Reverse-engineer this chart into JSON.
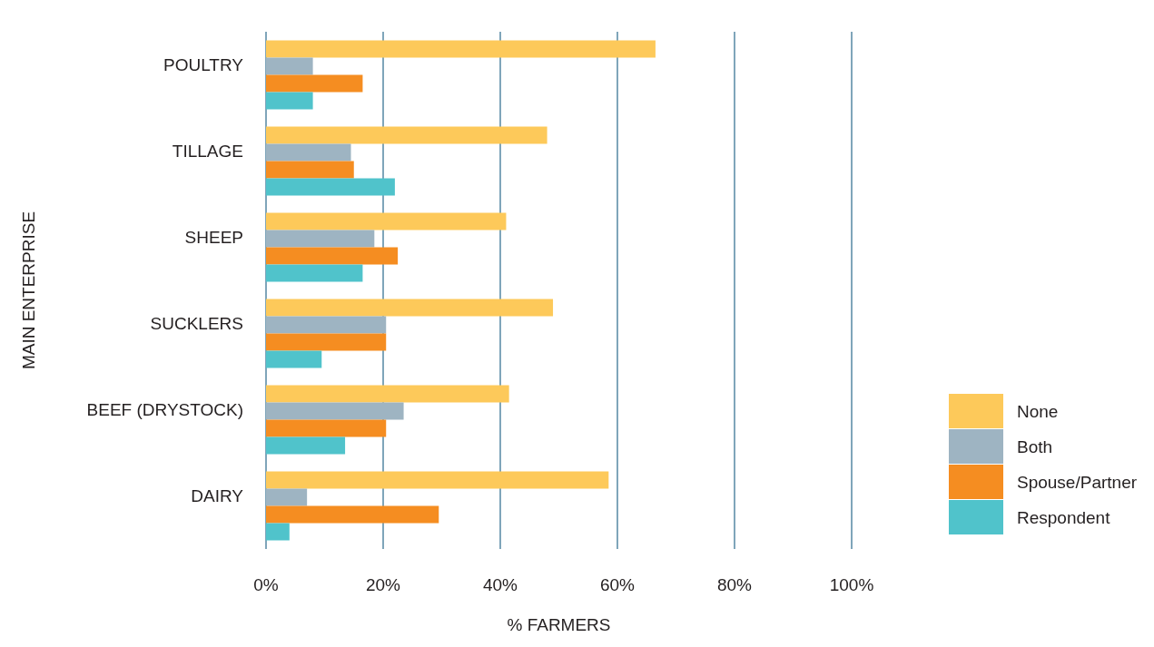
{
  "chart_data": {
    "type": "bar",
    "orientation": "horizontal",
    "xlabel": "% FARMERS",
    "ylabel": "MAIN ENTERPRISE",
    "categories": [
      "POULTRY",
      "TILLAGE",
      "SHEEP",
      "SUCKLERS",
      "BEEF (DRYSTOCK)",
      "DAIRY"
    ],
    "series": [
      {
        "name": "None",
        "color": "#fdc95a",
        "values": [
          66.5,
          48,
          41,
          49,
          41.5,
          58.5
        ]
      },
      {
        "name": "Both",
        "color": "#9eb4c2",
        "values": [
          8,
          14.5,
          18.5,
          20.5,
          23.5,
          7
        ]
      },
      {
        "name": "Spouse/Partner",
        "color": "#f58d21",
        "values": [
          16.5,
          15,
          22.5,
          20.5,
          20.5,
          29.5
        ]
      },
      {
        "name": "Respondent",
        "color": "#50c3cb",
        "values": [
          8,
          22,
          16.5,
          9.5,
          13.5,
          4
        ]
      }
    ],
    "xlim": [
      0,
      100
    ],
    "xticks": [
      {
        "value": 0,
        "label": "0%"
      },
      {
        "value": 20,
        "label": "20%"
      },
      {
        "value": 40,
        "label": "40%"
      },
      {
        "value": 60,
        "label": "60%"
      },
      {
        "value": 80,
        "label": "80%"
      },
      {
        "value": 100,
        "label": "100%"
      }
    ],
    "grid": "x",
    "legend": "bottom right"
  }
}
